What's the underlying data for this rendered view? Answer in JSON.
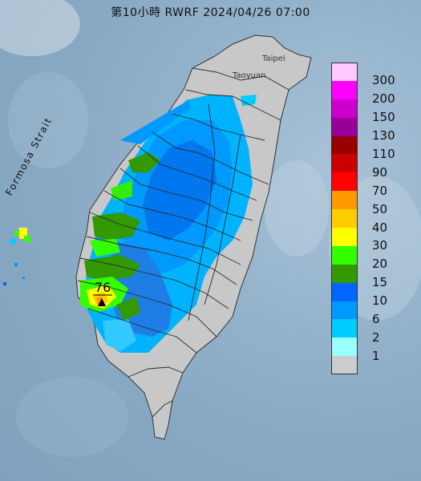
{
  "title": "第10小時  RWRF 2024/04/26 07:00",
  "places": {
    "taipei": "Taipei",
    "taoyuan": "Taoyuan",
    "strait": "Formosa Strait"
  },
  "max_value_label": "76",
  "legend": [
    {
      "label": "300",
      "color": "#ffc8ff"
    },
    {
      "label": "200",
      "color": "#ff00ff"
    },
    {
      "label": "150",
      "color": "#cc00cc"
    },
    {
      "label": "130",
      "color": "#990099"
    },
    {
      "label": "110",
      "color": "#990000"
    },
    {
      "label": "90",
      "color": "#cc0000"
    },
    {
      "label": "70",
      "color": "#ff0000"
    },
    {
      "label": "50",
      "color": "#ff9900"
    },
    {
      "label": "40",
      "color": "#ffcc00"
    },
    {
      "label": "30",
      "color": "#ffff00"
    },
    {
      "label": "20",
      "color": "#33ff00"
    },
    {
      "label": "15",
      "color": "#339900"
    },
    {
      "label": "10",
      "color": "#0066ff"
    },
    {
      "label": "6",
      "color": "#0099ff"
    },
    {
      "label": "2",
      "color": "#00ccff"
    },
    {
      "label": "1",
      "color": "#99ffff"
    },
    {
      "label": "",
      "color": "#cccccc"
    }
  ]
}
